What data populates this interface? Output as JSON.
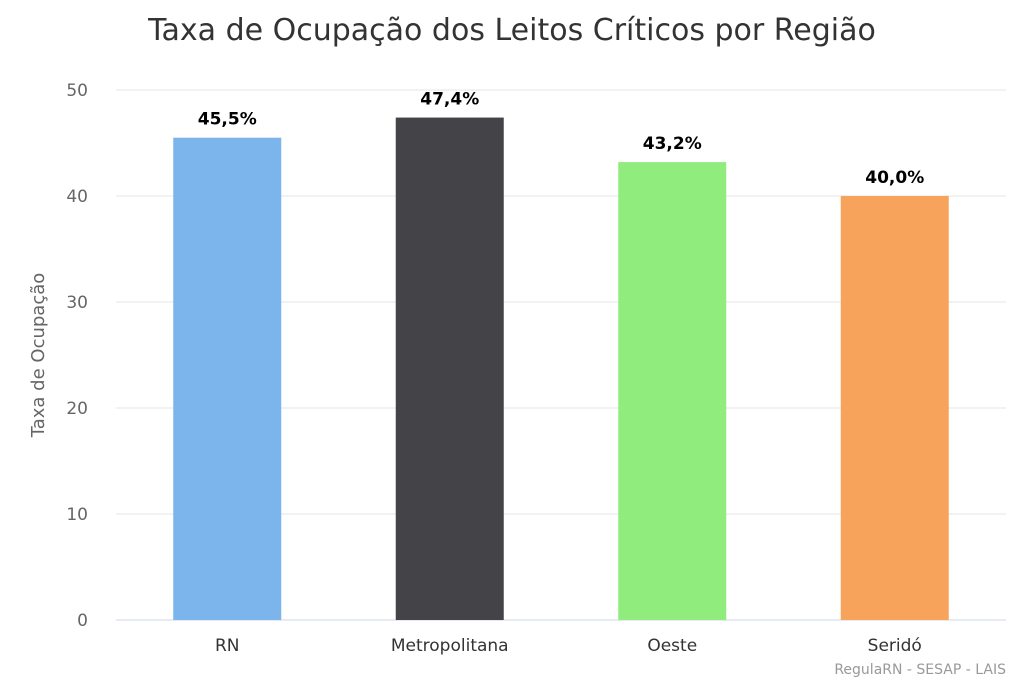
{
  "chart_data": {
    "type": "bar",
    "title": "Taxa de Ocupação dos Leitos Críticos por Região",
    "ylabel": "Taxa de Ocupação",
    "xlabel": "",
    "categories": [
      "RN",
      "Metropolitana",
      "Oeste",
      "Seridó"
    ],
    "values": [
      45.5,
      47.4,
      43.2,
      40.0
    ],
    "data_labels": [
      "45,5%",
      "47,4%",
      "43,2%",
      "40,0%"
    ],
    "colors": [
      "#7cb5ec",
      "#434348",
      "#90ed7d",
      "#f7a35c"
    ],
    "ylim": [
      0,
      50
    ],
    "yticks": [
      0,
      10,
      20,
      30,
      40,
      50
    ],
    "ytick_labels": [
      "0",
      "10",
      "20",
      "30",
      "40",
      "50"
    ],
    "grid": true,
    "legend": "none",
    "credit": "RegulaRN - SESAP - LAIS"
  }
}
